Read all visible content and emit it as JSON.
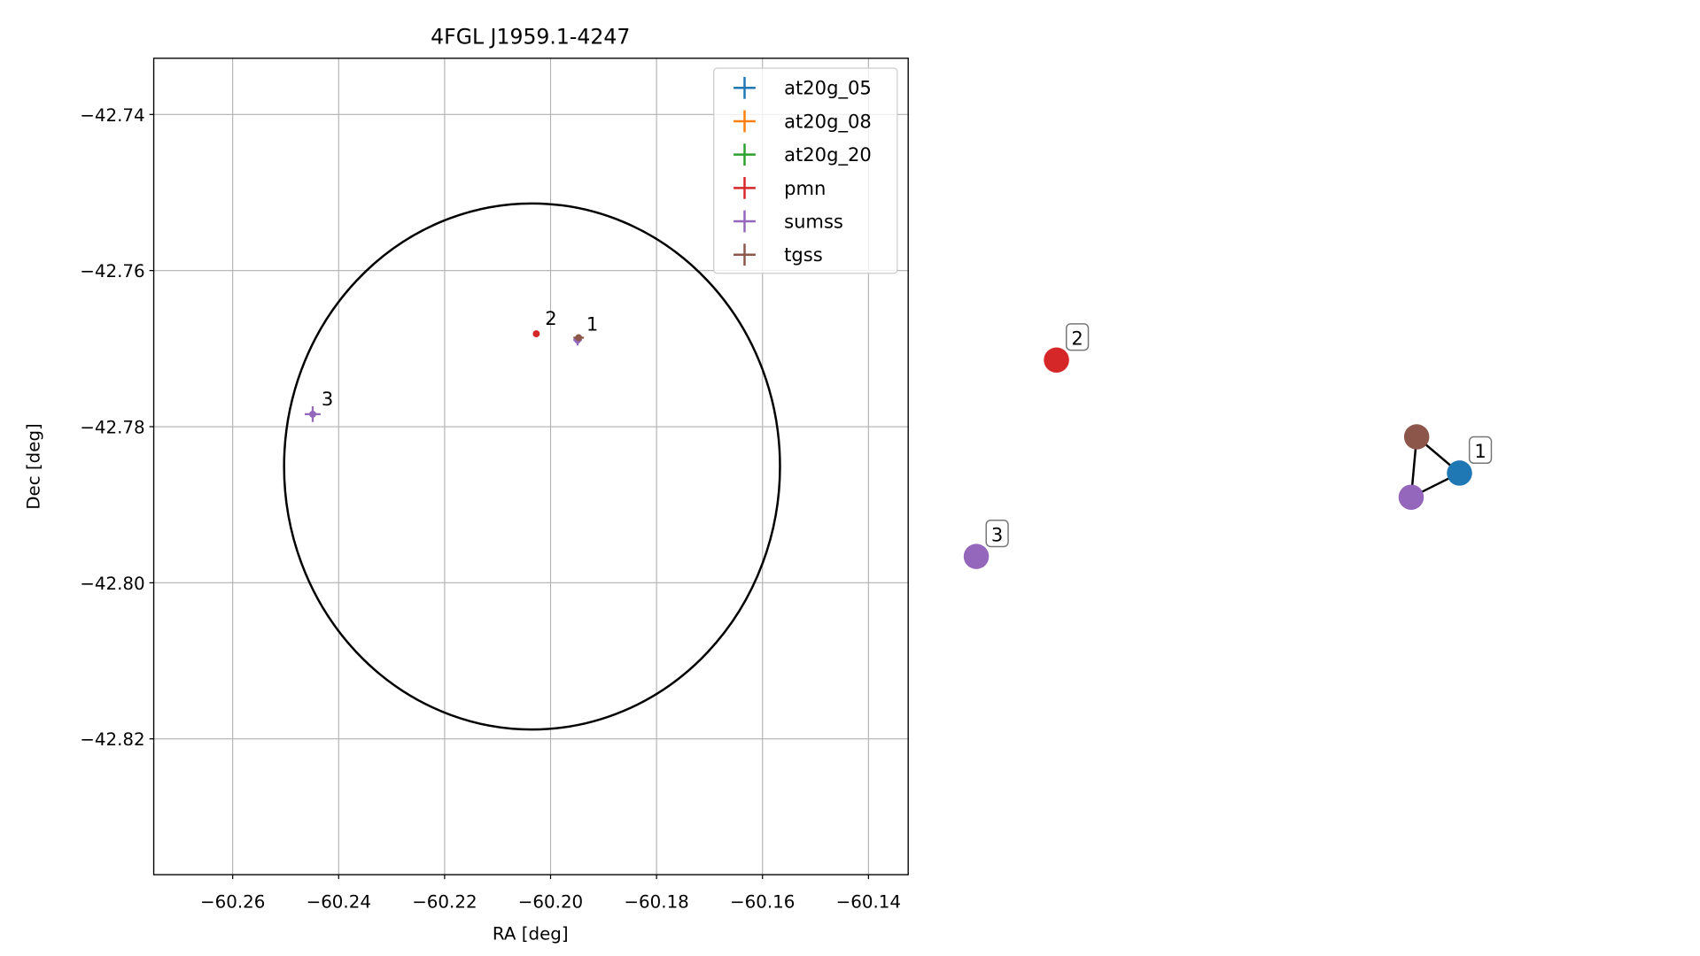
{
  "chart_data": {
    "type": "scatter",
    "title": "4FGL J1959.1-4247",
    "x_label": "RA [deg]",
    "y_label": "Dec [deg]",
    "xlim": [
      -60.2749,
      -60.1325
    ],
    "ylim": [
      -42.8374,
      -42.7328
    ],
    "xticks": [
      {
        "value": -60.26,
        "label": "−60.26"
      },
      {
        "value": -60.24,
        "label": "−60.24"
      },
      {
        "value": -60.22,
        "label": "−60.22"
      },
      {
        "value": -60.2,
        "label": "−60.20"
      },
      {
        "value": -60.18,
        "label": "−60.18"
      },
      {
        "value": -60.16,
        "label": "−60.16"
      },
      {
        "value": -60.14,
        "label": "−60.14"
      }
    ],
    "yticks": [
      {
        "value": -42.74,
        "label": "−42.74"
      },
      {
        "value": -42.76,
        "label": "−42.76"
      },
      {
        "value": -42.78,
        "label": "−42.78"
      },
      {
        "value": -42.8,
        "label": "−42.80"
      },
      {
        "value": -42.82,
        "label": "−42.82"
      }
    ],
    "grid": true,
    "legend": "upper right",
    "series": [
      {
        "name": "at20g_05",
        "color": "#1f77b4",
        "x": [
          -60.1949
        ],
        "y": [
          -42.7688
        ],
        "xerr": [
          0.0004
        ],
        "yerr": [
          0.0003
        ]
      },
      {
        "name": "at20g_08",
        "color": "#ff7f0e",
        "x": [],
        "y": [],
        "xerr": [],
        "yerr": []
      },
      {
        "name": "at20g_20",
        "color": "#2ca02c",
        "x": [],
        "y": [],
        "xerr": [],
        "yerr": []
      },
      {
        "name": "pmn",
        "color": "#d62728",
        "x": [
          -60.2027
        ],
        "y": [
          -42.7681
        ],
        "xerr": [
          0.0002
        ],
        "yerr": [
          0.0002
        ]
      },
      {
        "name": "sumss",
        "color": "#9467bd",
        "x": [
          -60.1949,
          -60.2449
        ],
        "y": [
          -42.7689,
          -42.7784
        ],
        "xerr": [
          0.0008,
          0.0015
        ],
        "yerr": [
          0.0007,
          0.001
        ]
      },
      {
        "name": "tgss",
        "color": "#8c564b",
        "x": [
          -60.1947
        ],
        "y": [
          -42.7686
        ],
        "xerr": [
          0.001
        ],
        "yerr": [
          0.0004
        ]
      }
    ],
    "ellipse": {
      "x": -60.2035,
      "y": -42.7851,
      "rx": 0.0468,
      "ry": 0.0337,
      "color": "#000000"
    },
    "annotations": [
      {
        "text": "1",
        "x": -60.1949,
        "y": -42.7688
      },
      {
        "text": "2",
        "x": -60.2027,
        "y": -42.7681
      },
      {
        "text": "3",
        "x": -60.2449,
        "y": -42.7784
      }
    ],
    "graph": {
      "nodes": [
        {
          "color": "#d62728",
          "label": "2"
        },
        {
          "color": "#9467bd",
          "label": "3"
        },
        {
          "color": "#8c564b"
        },
        {
          "color": "#1f77b4",
          "label": "1"
        },
        {
          "color": "#9467bd"
        }
      ],
      "edges": [
        [
          2,
          3
        ],
        [
          2,
          4
        ],
        [
          4,
          3
        ]
      ]
    }
  }
}
